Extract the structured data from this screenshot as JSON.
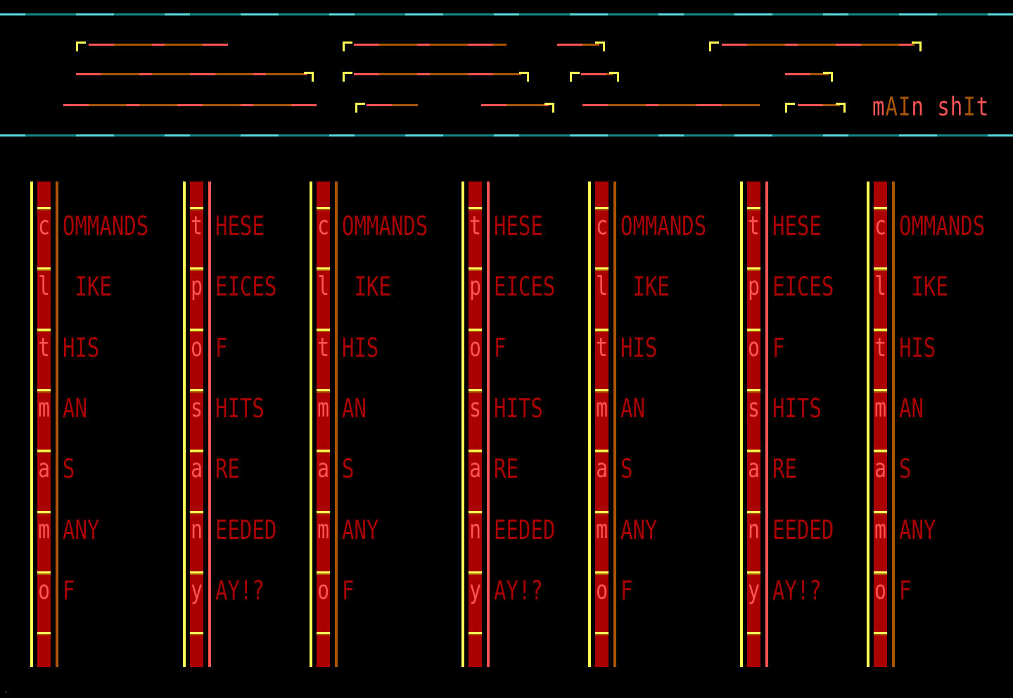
{
  "header": {
    "title": "mAIn shIt"
  },
  "colors": {
    "cyan": "#55dddd",
    "yellow": "#ffff55",
    "red": "#aa0000",
    "pink": "#ff5555",
    "orange": "#aa5500"
  },
  "columns": [
    {
      "type": "commands",
      "letters": [
        "c",
        "l",
        "t",
        "m",
        "a",
        "m",
        "o"
      ],
      "words": [
        "OMMANDS",
        " IKE",
        "HIS",
        "AN",
        "S",
        "ANY",
        "F"
      ]
    },
    {
      "type": "these",
      "letters": [
        "t",
        "p",
        "o",
        "s",
        "a",
        "n",
        "y"
      ],
      "words": [
        "HESE",
        "EICES",
        "F",
        "HITS",
        "RE",
        "EEDED",
        "AY!?"
      ]
    },
    {
      "type": "commands",
      "letters": [
        "c",
        "l",
        "t",
        "m",
        "a",
        "m",
        "o"
      ],
      "words": [
        "OMMANDS",
        " IKE",
        "HIS",
        "AN",
        "S",
        "ANY",
        "F"
      ]
    },
    {
      "type": "these",
      "letters": [
        "t",
        "p",
        "o",
        "s",
        "a",
        "n",
        "y"
      ],
      "words": [
        "HESE",
        "EICES",
        "F",
        "HITS",
        "RE",
        "EEDED",
        "AY!?"
      ]
    },
    {
      "type": "commands",
      "letters": [
        "c",
        "l",
        "t",
        "m",
        "a",
        "m",
        "o"
      ],
      "words": [
        "OMMANDS",
        " IKE",
        "HIS",
        "AN",
        "S",
        "ANY",
        "F"
      ]
    },
    {
      "type": "these",
      "letters": [
        "t",
        "p",
        "o",
        "s",
        "a",
        "n",
        "y"
      ],
      "words": [
        "HESE",
        "EICES",
        "F",
        "HITS",
        "RE",
        "EEDED",
        "AY!?"
      ]
    },
    {
      "type": "commands",
      "letters": [
        "c",
        "l",
        "t",
        "m",
        "a",
        "m",
        "o"
      ],
      "words": [
        "OMMANDS",
        " IKE",
        "HIS",
        "AN",
        "S",
        "ANY",
        "F"
      ]
    }
  ],
  "corner_mark": "ˌ"
}
